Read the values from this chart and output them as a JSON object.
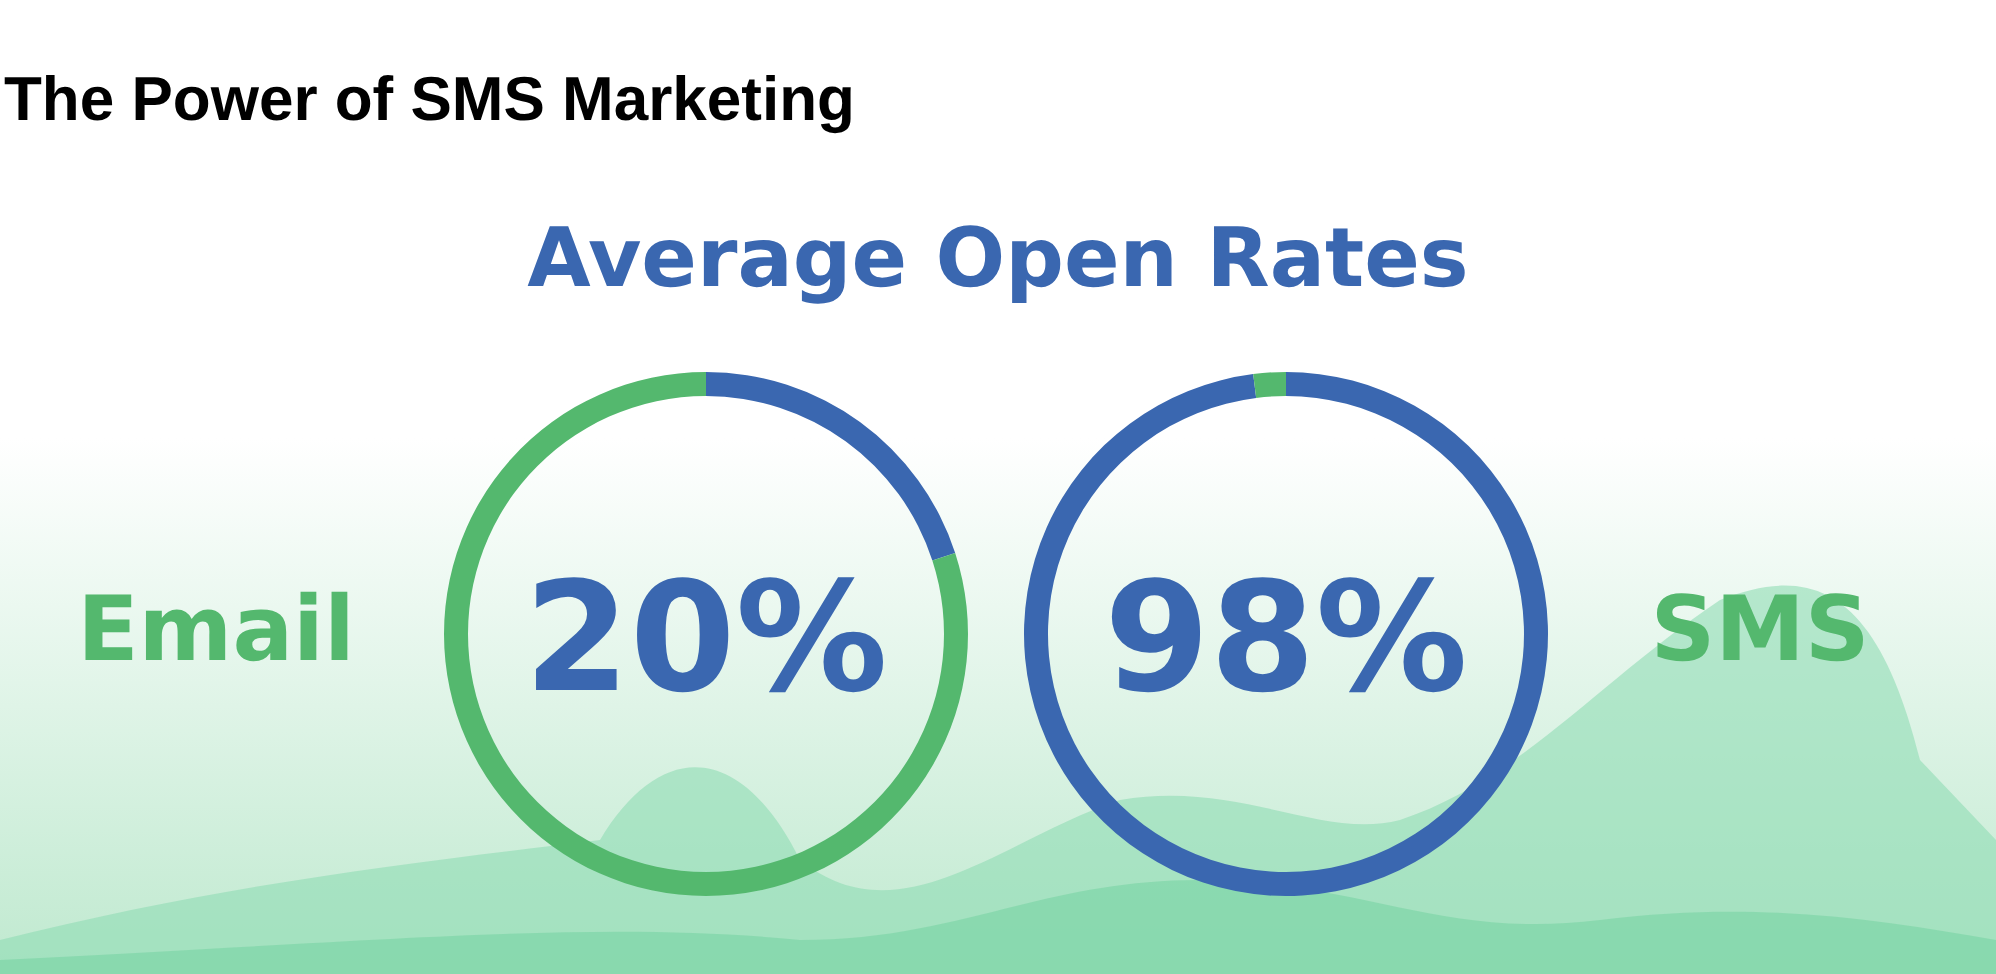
{
  "chart_data": [
    {
      "type": "donut",
      "title": "The Power of SMS Marketing",
      "subtitle": "Average Open Rates",
      "categories": [
        null,
        null
      ],
      "values": [
        20,
        80
      ],
      "colors": [
        "#3a67b0",
        "#54b86e"
      ],
      "annotations": [
        "Email",
        "20%"
      ]
    },
    {
      "type": "donut",
      "categories": [
        null,
        null
      ],
      "values": [
        98,
        2
      ],
      "colors": [
        "#3a67b0",
        "#54b86e"
      ],
      "annotations": [
        "SMS",
        "98%"
      ]
    }
  ]
}
